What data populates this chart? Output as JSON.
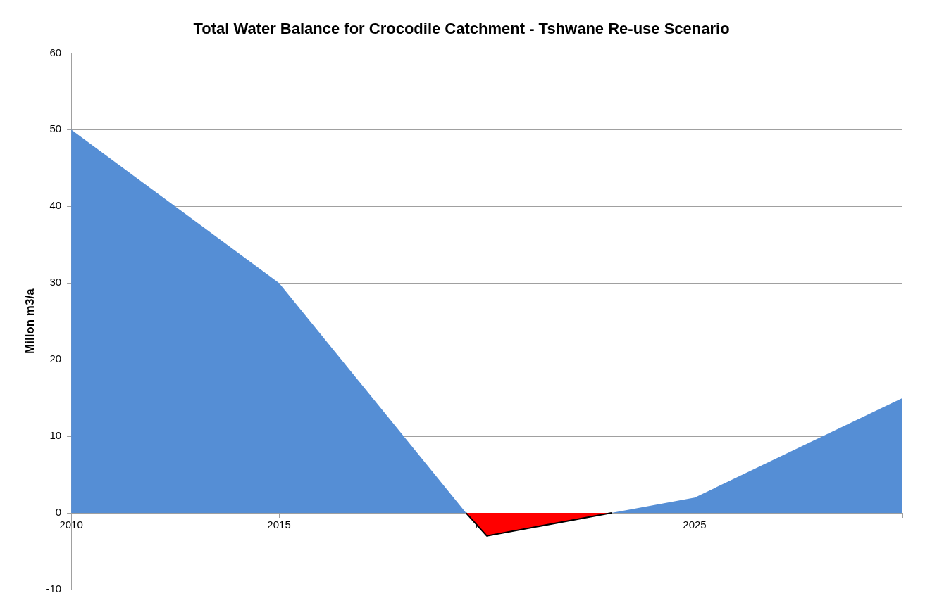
{
  "chart_data": {
    "type": "area",
    "title": "Total Water Balance for Crocodile Catchment - Tshwane Re-use Scenario",
    "ylabel": "Millon m3/a",
    "series": [
      {
        "color": "#558ed5",
        "x": [
          2010,
          2015,
          2019.5,
          2023,
          2025,
          2030
        ],
        "values": [
          50,
          30,
          0,
          0,
          2,
          15
        ]
      },
      {
        "color": "#ff0000",
        "x": [
          2019.5,
          2020,
          2023
        ],
        "values": [
          0,
          -3,
          0
        ]
      }
    ],
    "xlim": [
      2010,
      2030
    ],
    "xticks": [
      2010,
      2015,
      2020,
      2025,
      {
        "value": 2030,
        "label": null
      }
    ],
    "ylim": [
      -10,
      60
    ],
    "yticks": [
      -10,
      0,
      10,
      20,
      30,
      40,
      50,
      60
    ],
    "grid": "y",
    "legend": false
  }
}
